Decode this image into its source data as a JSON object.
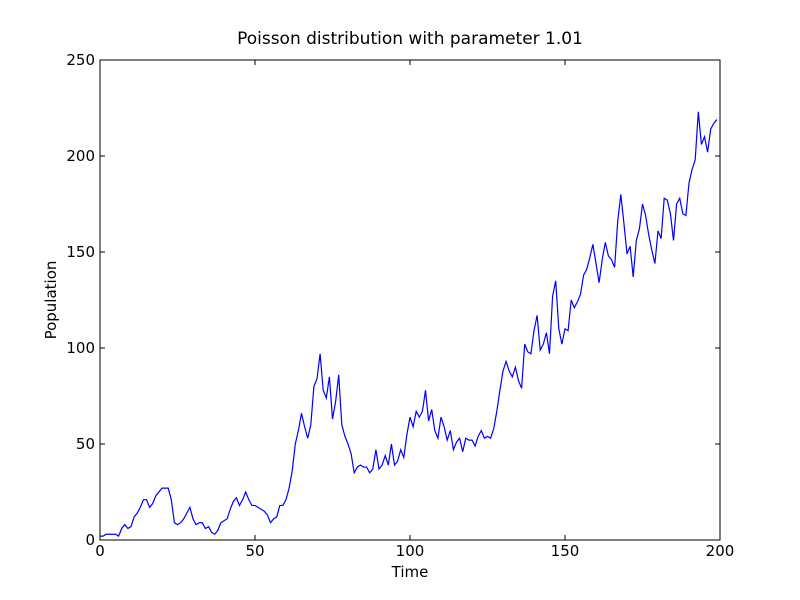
{
  "chart_data": {
    "type": "line",
    "title": "Poisson distribution with parameter 1.01",
    "x_label": "Time",
    "y_label": "Population",
    "x": [
      0,
      1,
      2,
      3,
      4,
      5,
      6,
      7,
      8,
      9,
      10,
      11,
      12,
      13,
      14,
      15,
      16,
      17,
      18,
      19,
      20,
      21,
      22,
      23,
      24,
      25,
      26,
      27,
      28,
      29,
      30,
      31,
      32,
      33,
      34,
      35,
      36,
      37,
      38,
      39,
      40,
      41,
      42,
      43,
      44,
      45,
      46,
      47,
      48,
      49,
      50,
      51,
      52,
      53,
      54,
      55,
      56,
      57,
      58,
      59,
      60,
      61,
      62,
      63,
      64,
      65,
      66,
      67,
      68,
      69,
      70,
      71,
      72,
      73,
      74,
      75,
      76,
      77,
      78,
      79,
      80,
      81,
      82,
      83,
      84,
      85,
      86,
      87,
      88,
      89,
      90,
      91,
      92,
      93,
      94,
      95,
      96,
      97,
      98,
      99,
      100,
      101,
      102,
      103,
      104,
      105,
      106,
      107,
      108,
      109,
      110,
      111,
      112,
      113,
      114,
      115,
      116,
      117,
      118,
      119,
      120,
      121,
      122,
      123,
      124,
      125,
      126,
      127,
      128,
      129,
      130,
      131,
      132,
      133,
      134,
      135,
      136,
      137,
      138,
      139,
      140,
      141,
      142,
      143,
      144,
      145,
      146,
      147,
      148,
      149,
      150,
      151,
      152,
      153,
      154,
      155,
      156,
      157,
      158,
      159,
      160,
      161,
      162,
      163,
      164,
      165,
      166,
      167,
      168,
      169,
      170,
      171,
      172,
      173,
      174,
      175,
      176,
      177,
      178,
      179,
      180,
      181,
      182,
      183,
      184,
      185,
      186,
      187,
      188,
      189,
      190,
      191,
      192,
      193,
      194,
      195,
      196,
      197,
      198,
      199
    ],
    "series": [
      {
        "name": "population",
        "color": "#0000ff",
        "values": [
          2,
          2,
          3,
          3,
          3,
          3,
          2,
          6,
          8,
          6,
          7,
          12,
          14,
          17,
          21,
          21,
          17,
          19,
          23,
          25,
          27,
          27,
          27,
          21,
          9,
          8,
          9,
          11,
          14,
          17,
          11,
          8,
          9,
          9,
          6,
          7,
          4,
          3,
          5,
          9,
          10,
          11,
          16,
          20,
          22,
          18,
          21,
          25,
          21,
          18,
          18,
          17,
          16,
          15,
          13,
          9,
          11,
          12,
          18,
          18,
          21,
          27,
          36,
          50,
          57,
          66,
          59,
          53,
          60,
          80,
          84,
          97,
          78,
          74,
          85,
          63,
          72,
          86,
          60,
          54,
          50,
          45,
          35,
          38,
          39,
          38,
          38,
          35,
          37,
          47,
          37,
          39,
          44,
          39,
          50,
          39,
          41,
          47,
          43,
          55,
          64,
          59,
          67,
          64,
          67,
          78,
          62,
          68,
          57,
          53,
          64,
          59,
          52,
          57,
          47,
          51,
          53,
          46,
          53,
          52,
          52,
          49,
          54,
          57,
          53,
          54,
          53,
          58,
          67,
          78,
          88,
          93,
          88,
          85,
          90,
          83,
          79,
          102,
          98,
          97,
          109,
          117,
          99,
          102,
          108,
          97,
          127,
          135,
          110,
          102,
          110,
          109,
          125,
          121,
          124,
          128,
          138,
          141,
          147,
          154,
          144,
          134,
          146,
          155,
          148,
          146,
          142,
          166,
          180,
          165,
          149,
          153,
          137,
          156,
          162,
          175,
          169,
          159,
          151,
          144,
          161,
          157,
          178,
          177,
          170,
          156,
          175,
          178,
          170,
          169,
          186,
          193,
          198,
          223,
          206,
          210,
          202,
          214,
          217,
          219
        ]
      }
    ],
    "xlim": [
      0,
      200
    ],
    "ylim": [
      0,
      250
    ],
    "xticks": [
      0,
      50,
      100,
      150,
      200
    ],
    "yticks": [
      0,
      50,
      100,
      150,
      200,
      250
    ],
    "grid": false
  }
}
